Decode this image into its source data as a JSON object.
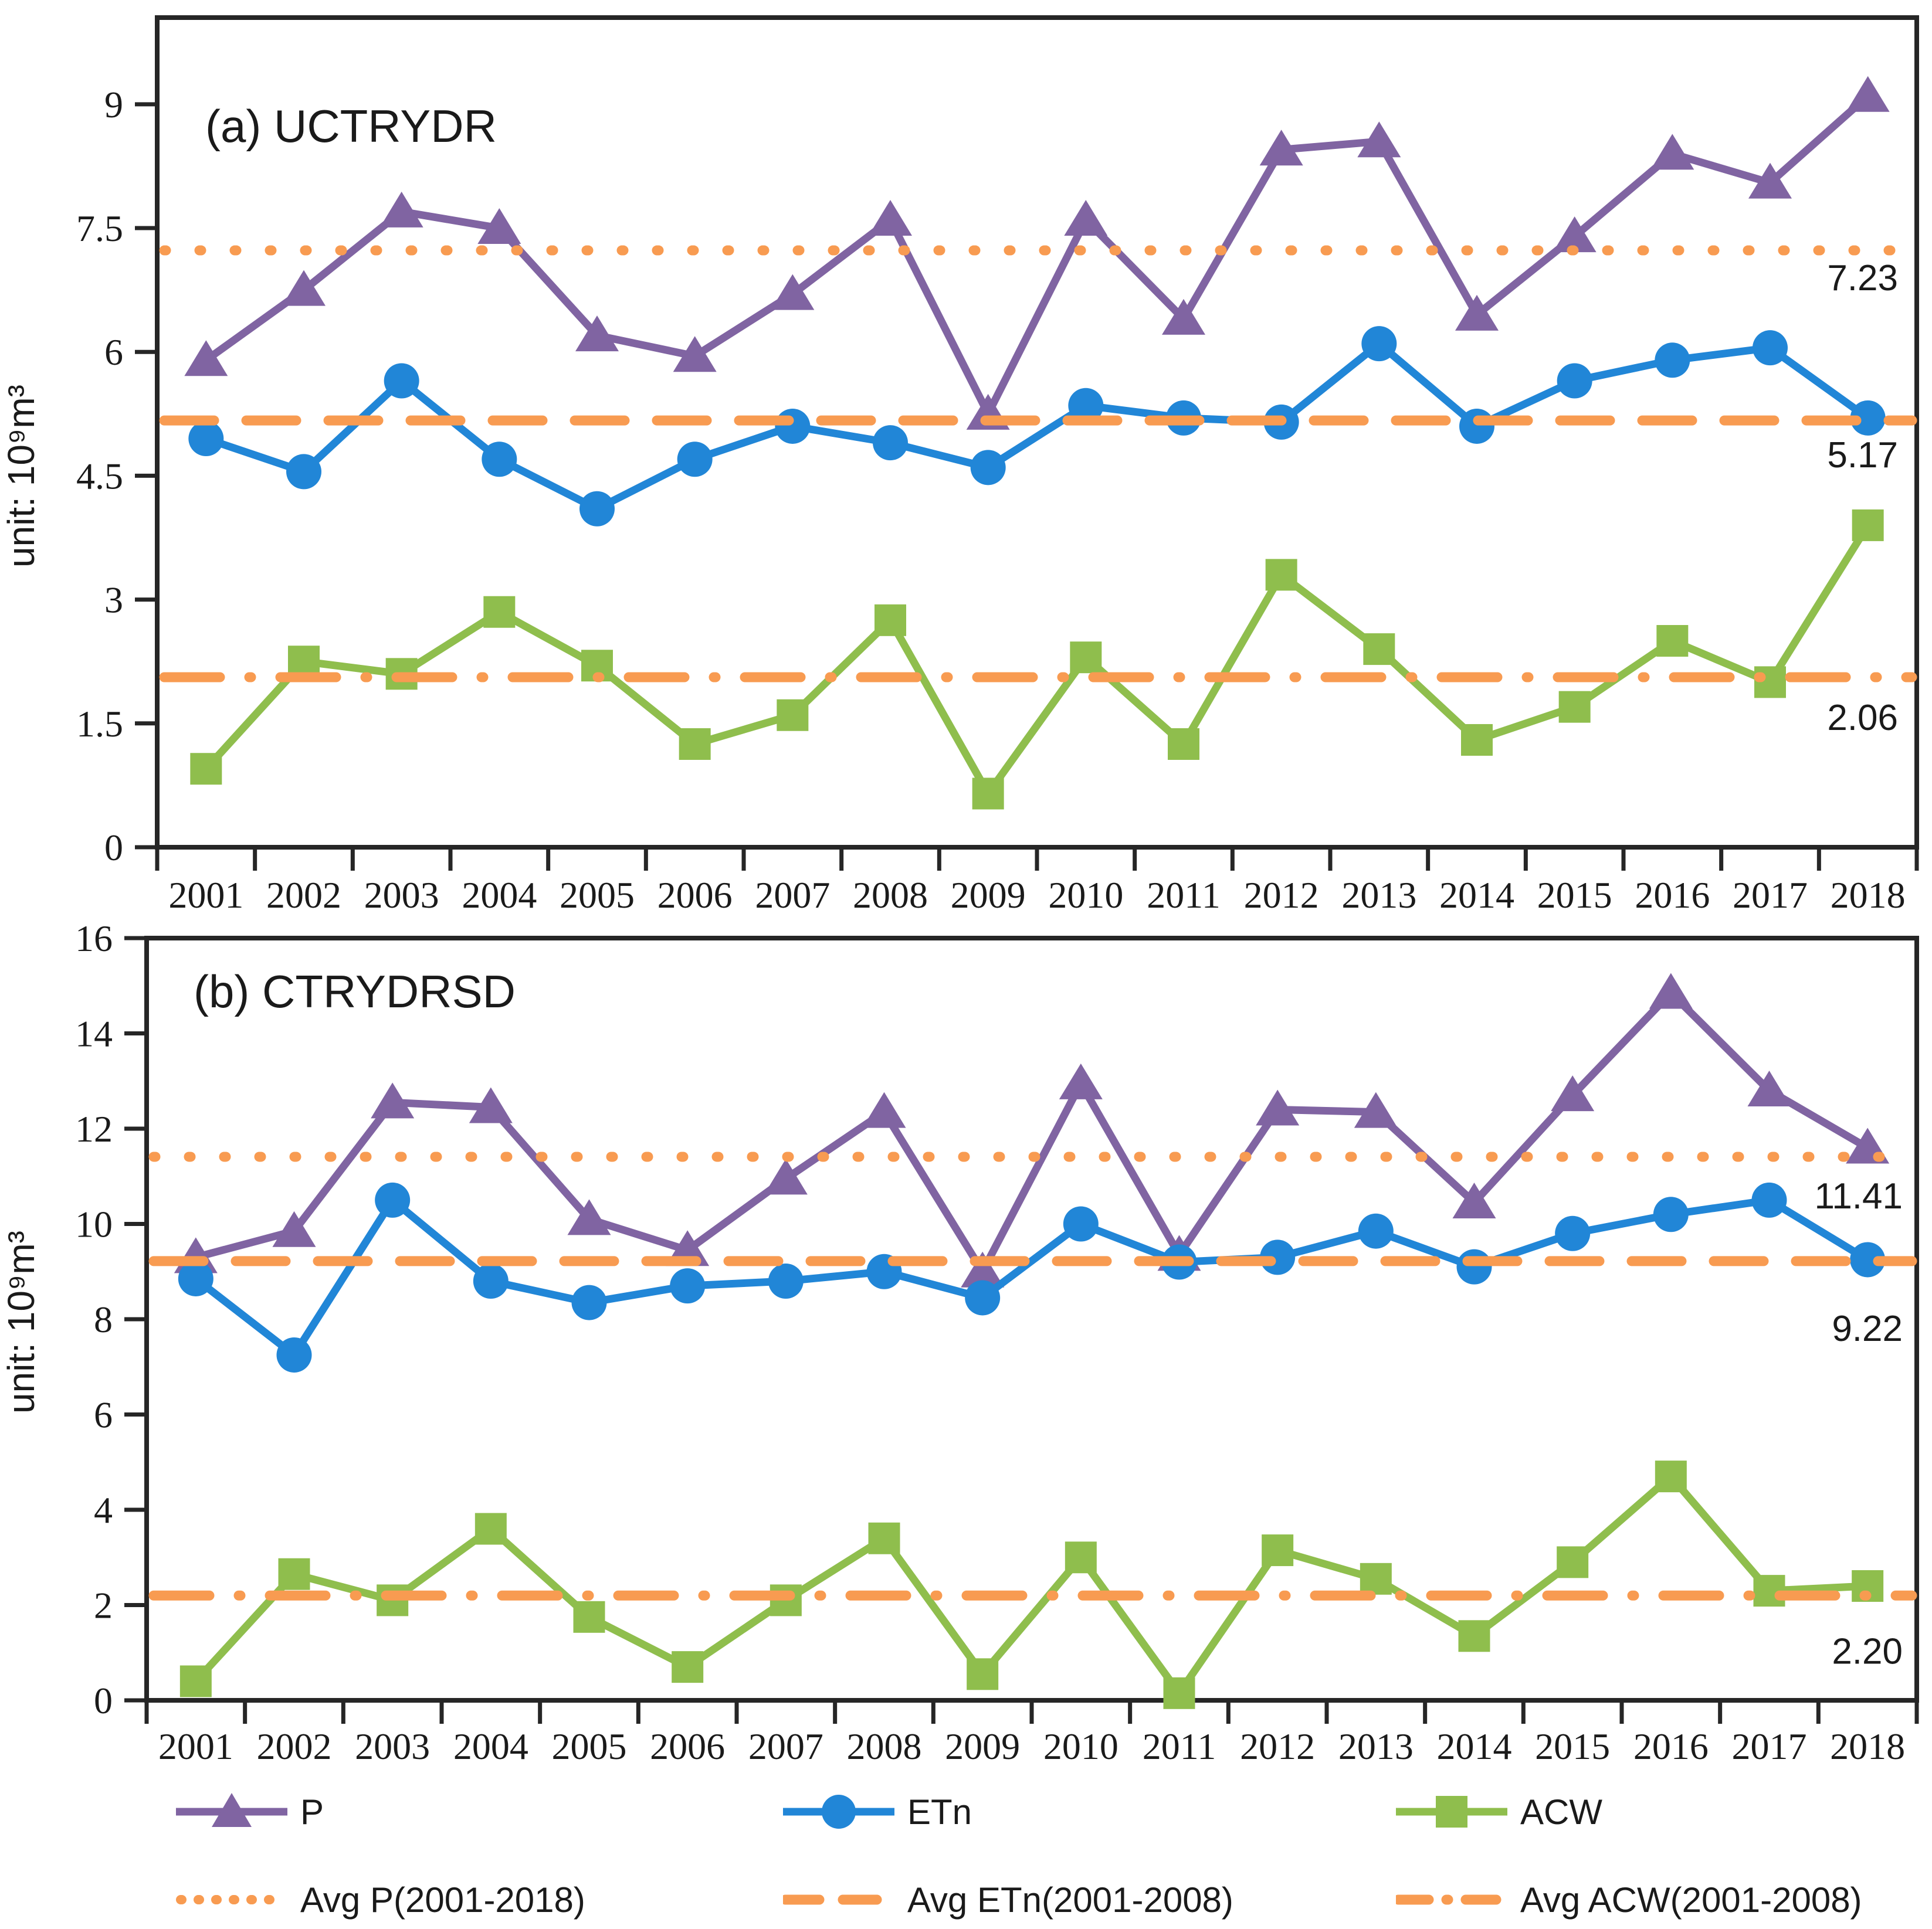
{
  "figure": {
    "unit_label": "unit: 10⁹m³"
  },
  "colors": {
    "P": "#8064A2",
    "ETn": "#2186D7",
    "ACW": "#8FBE4D",
    "avg": "#F89B51",
    "text": "#1A1A1A",
    "axis": "#262626"
  },
  "legend": {
    "p": "P",
    "etn": "ETn",
    "acw": "ACW",
    "avg_p": "Avg P(2001-2018)",
    "avg_etn": "Avg ETn(2001-2008)",
    "avg_acw": "Avg ACW(2001-2008)"
  },
  "chart_data": [
    {
      "type": "line",
      "title": "(a) UCTRYDR",
      "ylabel": "unit: 10⁹m³",
      "xlabel": "",
      "grid": false,
      "ylim": [
        0,
        10.05
      ],
      "yticks": [
        0,
        1.5,
        3,
        4.5,
        6,
        7.5,
        9
      ],
      "ytick_labels": [
        "0",
        "1.5",
        "3",
        "4.5",
        "6",
        "7.5",
        "9"
      ],
      "categories": [
        "2001",
        "2002",
        "2003",
        "2004",
        "2005",
        "2006",
        "2007",
        "2008",
        "2009",
        "2010",
        "2011",
        "2012",
        "2013",
        "2014",
        "2015",
        "2016",
        "2017",
        "2018"
      ],
      "series": [
        {
          "name": "P",
          "marker": "triangle",
          "color_key": "P",
          "values": [
            5.9,
            6.75,
            7.7,
            7.5,
            6.2,
            5.95,
            6.7,
            7.6,
            5.25,
            7.6,
            6.4,
            8.45,
            8.55,
            6.45,
            7.4,
            8.4,
            8.05,
            9.1
          ]
        },
        {
          "name": "ETn",
          "marker": "circle",
          "color_key": "ETn",
          "values": [
            4.95,
            4.55,
            5.65,
            4.7,
            4.1,
            4.7,
            5.1,
            4.9,
            4.6,
            5.35,
            5.2,
            5.15,
            6.1,
            5.1,
            5.65,
            5.9,
            6.05,
            5.2
          ]
        },
        {
          "name": "ACW",
          "marker": "square",
          "color_key": "ACW",
          "values": [
            0.95,
            2.25,
            2.1,
            2.85,
            2.2,
            1.25,
            1.6,
            2.75,
            0.65,
            2.3,
            1.25,
            3.3,
            2.4,
            1.3,
            1.7,
            2.5,
            2.0,
            3.9
          ]
        }
      ],
      "avg_lines": [
        {
          "name": "Avg P(2001-2018)",
          "value": 7.23,
          "style": "dot",
          "label": "7.23"
        },
        {
          "name": "Avg ETn(2001-2008)",
          "value": 5.17,
          "style": "dash",
          "label": "5.17"
        },
        {
          "name": "Avg ACW(2001-2008)",
          "value": 2.06,
          "style": "dashdot",
          "label": "2.06"
        }
      ]
    },
    {
      "type": "line",
      "title": "(b) CTRYDRSD",
      "ylabel": "unit: 10⁹m³",
      "xlabel": "",
      "grid": false,
      "ylim": [
        0,
        16
      ],
      "yticks": [
        0,
        2,
        4,
        6,
        8,
        10,
        12,
        14,
        16
      ],
      "ytick_labels": [
        "0",
        "2",
        "4",
        "6",
        "8",
        "10",
        "12",
        "14",
        "16"
      ],
      "categories": [
        "2001",
        "2002",
        "2003",
        "2004",
        "2005",
        "2006",
        "2007",
        "2008",
        "2009",
        "2010",
        "2011",
        "2012",
        "2013",
        "2014",
        "2015",
        "2016",
        "2017",
        "2018"
      ],
      "series": [
        {
          "name": "P",
          "marker": "triangle",
          "color_key": "P",
          "values": [
            9.3,
            9.85,
            12.55,
            12.45,
            10.1,
            9.45,
            10.95,
            12.35,
            9.0,
            12.95,
            9.35,
            12.4,
            12.35,
            10.45,
            12.7,
            14.85,
            12.8,
            11.6
          ]
        },
        {
          "name": "ETn",
          "marker": "circle",
          "color_key": "ETn",
          "values": [
            8.85,
            7.25,
            10.5,
            8.8,
            8.35,
            8.7,
            8.8,
            9.0,
            8.45,
            10.0,
            9.2,
            9.3,
            9.85,
            9.1,
            9.8,
            10.2,
            10.5,
            9.25
          ]
        },
        {
          "name": "ACW",
          "marker": "square",
          "color_key": "ACW",
          "values": [
            0.4,
            2.65,
            2.1,
            3.6,
            1.75,
            0.7,
            2.1,
            3.4,
            0.55,
            3.0,
            0.15,
            3.15,
            2.55,
            1.35,
            2.9,
            4.7,
            2.3,
            2.4
          ]
        }
      ],
      "avg_lines": [
        {
          "name": "Avg P(2001-2018)",
          "value": 11.41,
          "style": "dot",
          "label": "11.41"
        },
        {
          "name": "Avg ETn(2001-2008)",
          "value": 9.22,
          "style": "dash",
          "label": "9.22"
        },
        {
          "name": "Avg ACW(2001-2008)",
          "value": 2.2,
          "style": "dashdot",
          "label": "2.20"
        }
      ]
    }
  ]
}
